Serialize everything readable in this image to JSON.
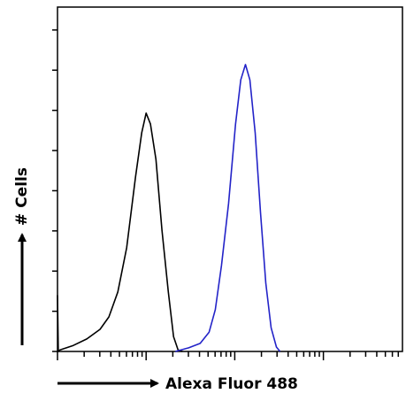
{
  "chart_data": {
    "type": "line",
    "x_label": "Alexa Fluor 488",
    "y_label": "# Cells",
    "log_x": true,
    "xlim": [
      1,
      7800
    ],
    "ylim": [
      0,
      8.57
    ],
    "xticks": [
      1,
      2,
      3,
      4,
      5,
      6,
      7,
      8,
      9,
      10,
      20,
      30,
      40,
      50,
      60,
      70,
      80,
      90,
      100,
      200,
      300,
      400,
      500,
      600,
      700,
      800,
      900,
      1000,
      2000,
      3000,
      4000,
      5000,
      6000,
      7000
    ],
    "yticks": [
      0,
      1,
      2,
      3,
      4,
      5,
      6,
      7,
      8
    ],
    "series": [
      {
        "color": "#000000",
        "x": [
          1,
          1.02,
          1.07,
          1.51,
          2.14,
          3.02,
          3.8,
          4.79,
          6.03,
          7.59,
          8.91,
          10,
          11.2,
          12.9,
          15.1,
          17.8,
          20.4,
          22.9,
          25.7
        ],
        "values": [
          1.4,
          0,
          0.04,
          0.15,
          0.31,
          0.55,
          0.86,
          1.48,
          2.58,
          4.34,
          5.44,
          5.93,
          5.66,
          4.78,
          3.02,
          1.48,
          0.37,
          0.04,
          0
        ]
      },
      {
        "color": "#2323c8",
        "x": [
          21.4,
          30.2,
          40.7,
          51.3,
          60.3,
          70.8,
          85.1,
          102,
          117,
          132,
          148,
          170,
          195,
          224,
          257,
          295,
          324
        ],
        "values": [
          0,
          0.09,
          0.2,
          0.48,
          1.04,
          2.14,
          3.68,
          5.66,
          6.76,
          7.14,
          6.76,
          5.44,
          3.46,
          1.7,
          0.59,
          0.11,
          0
        ]
      }
    ]
  }
}
